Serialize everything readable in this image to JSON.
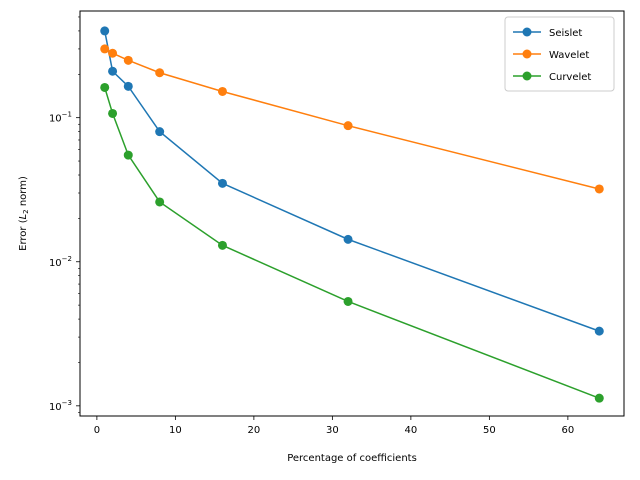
{
  "chart_data": {
    "type": "line",
    "xlabel": "Percentage of coefficients",
    "ylabel": {
      "prefix": "Error (",
      "symbol": "L",
      "subscript": "2",
      "suffix": " norm)"
    },
    "x_scale": "linear",
    "y_scale": "log",
    "xlim": [
      -2.15,
      67.15
    ],
    "ylim": [
      0.00085,
      0.55
    ],
    "x_ticks": [
      {
        "value": 0,
        "label": "0"
      },
      {
        "value": 10,
        "label": "10"
      },
      {
        "value": 20,
        "label": "20"
      },
      {
        "value": 30,
        "label": "30"
      },
      {
        "value": 40,
        "label": "40"
      },
      {
        "value": 50,
        "label": "50"
      },
      {
        "value": 60,
        "label": "60"
      }
    ],
    "y_ticks": [
      {
        "value": 0.001,
        "base": "10",
        "exp": "−3"
      },
      {
        "value": 0.01,
        "base": "10",
        "exp": "−2"
      },
      {
        "value": 0.1,
        "base": "10",
        "exp": "−1"
      }
    ],
    "grid": false,
    "legend_position": "top-right",
    "x": [
      1,
      2,
      4,
      8,
      16,
      32,
      64
    ],
    "series": [
      {
        "name": "Seislet",
        "color": "#1f77b4",
        "values": [
          0.4,
          0.21,
          0.165,
          0.08,
          0.035,
          0.0143,
          0.0033
        ]
      },
      {
        "name": "Wavelet",
        "color": "#ff7f0e",
        "values": [
          0.3,
          0.28,
          0.25,
          0.205,
          0.152,
          0.088,
          0.032
        ]
      },
      {
        "name": "Curvelet",
        "color": "#2ca02c",
        "values": [
          0.162,
          0.107,
          0.055,
          0.026,
          0.013,
          0.0053,
          0.00113
        ]
      }
    ]
  }
}
